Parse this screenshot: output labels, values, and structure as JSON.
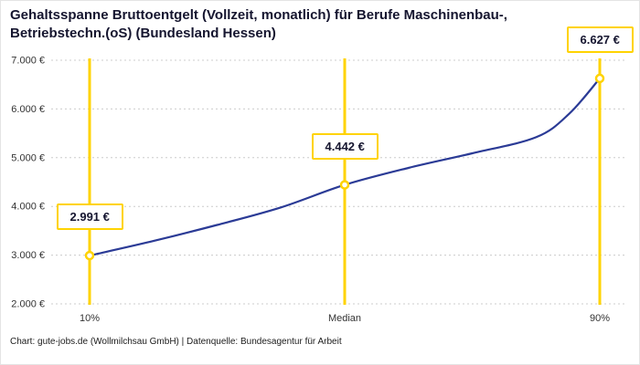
{
  "footer": "Chart: gute-jobs.de (Wollmilchsau GmbH) | Datenquelle: Bundesagentur für Arbeit",
  "colors": {
    "accent_yellow": "#FFD301",
    "line_blue": "#2B3B96",
    "grid": "#cccccc",
    "title_text": "#15152f",
    "tick_text": "#333333"
  },
  "chart_data": {
    "type": "line",
    "title": "Gehaltsspanne Bruttoentgelt (Vollzeit, monatlich) für Berufe Maschinenbau-, Betriebstechn.(oS) (Bundesland Hessen)",
    "categories": [
      "10%",
      "Median",
      "90%"
    ],
    "values": [
      2991,
      4442,
      6627
    ],
    "value_labels": [
      "2.991 €",
      "4.442 €",
      "6.627 €"
    ],
    "ylim": [
      2000,
      7000
    ],
    "yticks": [
      2000,
      3000,
      4000,
      5000,
      6000,
      7000
    ],
    "ytick_labels": [
      "2.000 €",
      "3.000 €",
      "4.000 €",
      "5.000 €",
      "6.000 €",
      "7.000 €"
    ],
    "grid": true,
    "legend": false,
    "curve_estimate": {
      "fractions": [
        0,
        0.125,
        0.25,
        0.375,
        0.5,
        0.625,
        0.75,
        0.875,
        0.94,
        1
      ],
      "values": [
        2991,
        3290,
        3620,
        3980,
        4442,
        4790,
        5090,
        5420,
        5900,
        6627
      ]
    }
  }
}
